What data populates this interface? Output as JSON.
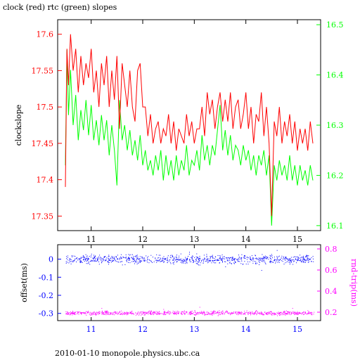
{
  "title": "clock (red) rtc (green) slopes",
  "footer": "2010-01-10 monopole.physics.ubc.ca",
  "colors": {
    "red": "#ff0000",
    "green": "#00ff00",
    "blue": "#0000ff",
    "magenta": "#ff00ff",
    "black": "#000000"
  },
  "chart_data": [
    {
      "type": "line",
      "xlim": [
        10.35,
        15.45
      ],
      "x_ticks": [
        "11",
        "12",
        "13",
        "14",
        "15"
      ],
      "ylabel_left": "clockslope",
      "ylim_left": [
        17.33,
        17.62
      ],
      "y_ticks_left": [
        "17.6",
        "17.55",
        "17.5",
        "17.45",
        "17.4",
        "17.35"
      ],
      "ylim_right": [
        16.09,
        16.51
      ],
      "y_ticks_right": [
        "16.5",
        "16.4",
        "16.3",
        "16.2",
        "16.1"
      ],
      "series": [
        {
          "axis": "left",
          "color": "red",
          "x": [
            10.5,
            10.53,
            10.56,
            10.6,
            10.65,
            10.7,
            10.75,
            10.8,
            10.85,
            10.9,
            10.95,
            11.0,
            11.05,
            11.1,
            11.15,
            11.2,
            11.25,
            11.3,
            11.35,
            11.4,
            11.45,
            11.5,
            11.55,
            11.6,
            11.65,
            11.7,
            11.75,
            11.8,
            11.85,
            11.9,
            11.95,
            12.0,
            12.05,
            12.1,
            12.15,
            12.2,
            12.25,
            12.3,
            12.35,
            12.4,
            12.45,
            12.5,
            12.55,
            12.6,
            12.65,
            12.7,
            12.75,
            12.8,
            12.85,
            12.9,
            12.95,
            13.0,
            13.05,
            13.1,
            13.15,
            13.2,
            13.25,
            13.3,
            13.35,
            13.4,
            13.45,
            13.5,
            13.55,
            13.6,
            13.65,
            13.7,
            13.75,
            13.8,
            13.85,
            13.9,
            13.95,
            14.0,
            14.05,
            14.1,
            14.15,
            14.2,
            14.25,
            14.3,
            14.35,
            14.4,
            14.45,
            14.5,
            14.55,
            14.6,
            14.65,
            14.7,
            14.75,
            14.8,
            14.85,
            14.9,
            14.95,
            15.0,
            15.05,
            15.1,
            15.15,
            15.2,
            15.25,
            15.3
          ],
          "y": [
            17.39,
            17.58,
            17.53,
            17.6,
            17.55,
            17.58,
            17.52,
            17.57,
            17.53,
            17.56,
            17.54,
            17.58,
            17.52,
            17.55,
            17.5,
            17.56,
            17.53,
            17.57,
            17.5,
            17.55,
            17.51,
            17.57,
            17.47,
            17.56,
            17.53,
            17.5,
            17.55,
            17.5,
            17.48,
            17.55,
            17.56,
            17.5,
            17.5,
            17.46,
            17.49,
            17.45,
            17.47,
            17.48,
            17.45,
            17.47,
            17.46,
            17.49,
            17.45,
            17.48,
            17.44,
            17.47,
            17.46,
            17.45,
            17.49,
            17.46,
            17.48,
            17.45,
            17.47,
            17.47,
            17.5,
            17.46,
            17.52,
            17.49,
            17.51,
            17.47,
            17.5,
            17.52,
            17.48,
            17.51,
            17.48,
            17.52,
            17.47,
            17.5,
            17.51,
            17.47,
            17.49,
            17.52,
            17.47,
            17.5,
            17.45,
            17.49,
            17.48,
            17.52,
            17.46,
            17.5,
            17.45,
            17.35,
            17.48,
            17.46,
            17.5,
            17.45,
            17.48,
            17.46,
            17.49,
            17.45,
            17.48,
            17.44,
            17.47,
            17.45,
            17.47,
            17.44,
            17.48,
            17.45
          ]
        },
        {
          "axis": "right",
          "color": "green",
          "x": [
            10.5,
            10.53,
            10.56,
            10.6,
            10.65,
            10.7,
            10.75,
            10.8,
            10.85,
            10.9,
            10.95,
            11.0,
            11.05,
            11.1,
            11.15,
            11.2,
            11.25,
            11.3,
            11.35,
            11.4,
            11.45,
            11.5,
            11.55,
            11.6,
            11.65,
            11.7,
            11.75,
            11.8,
            11.85,
            11.9,
            11.95,
            12.0,
            12.05,
            12.1,
            12.15,
            12.2,
            12.25,
            12.3,
            12.35,
            12.4,
            12.45,
            12.5,
            12.55,
            12.6,
            12.65,
            12.7,
            12.75,
            12.8,
            12.85,
            12.9,
            12.95,
            13.0,
            13.05,
            13.1,
            13.15,
            13.2,
            13.25,
            13.3,
            13.35,
            13.4,
            13.45,
            13.5,
            13.55,
            13.6,
            13.65,
            13.7,
            13.75,
            13.8,
            13.85,
            13.9,
            13.95,
            14.0,
            14.05,
            14.1,
            14.15,
            14.2,
            14.25,
            14.3,
            14.35,
            14.4,
            14.45,
            14.5,
            14.55,
            14.6,
            14.65,
            14.7,
            14.75,
            14.8,
            14.85,
            14.9,
            14.95,
            15.0,
            15.05,
            15.1,
            15.15,
            15.2,
            15.25,
            15.3
          ],
          "y": [
            16.22,
            16.45,
            16.32,
            16.41,
            16.3,
            16.36,
            16.27,
            16.33,
            16.29,
            16.35,
            16.28,
            16.34,
            16.27,
            16.31,
            16.26,
            16.32,
            16.27,
            16.31,
            16.24,
            16.3,
            16.25,
            16.18,
            16.35,
            16.27,
            16.3,
            16.25,
            16.29,
            16.24,
            16.27,
            16.23,
            16.28,
            16.22,
            16.25,
            16.21,
            16.23,
            16.2,
            16.24,
            16.21,
            16.25,
            16.19,
            16.24,
            16.2,
            16.23,
            16.19,
            16.24,
            16.2,
            16.23,
            16.21,
            16.26,
            16.2,
            16.23,
            16.22,
            16.25,
            16.21,
            16.28,
            16.23,
            16.26,
            16.22,
            16.26,
            16.24,
            16.29,
            16.34,
            16.25,
            16.29,
            16.24,
            16.28,
            16.23,
            16.26,
            16.25,
            16.22,
            16.26,
            16.23,
            16.25,
            16.21,
            16.24,
            16.2,
            16.24,
            16.22,
            16.25,
            16.2,
            16.24,
            16.1,
            16.22,
            16.19,
            16.23,
            16.2,
            16.22,
            16.19,
            16.24,
            16.19,
            16.22,
            16.18,
            16.22,
            16.19,
            16.21,
            16.18,
            16.22,
            16.19
          ]
        }
      ]
    },
    {
      "type": "scatter",
      "xlim": [
        10.35,
        15.45
      ],
      "x_ticks": [
        "11",
        "12",
        "13",
        "14",
        "15"
      ],
      "ylabel_left": "offset(ms)",
      "ylim_left": [
        -0.34,
        0.08
      ],
      "y_ticks_left": [
        "0",
        "-0.1",
        "-0.2",
        "-0.3"
      ],
      "ylabel_right": "rnd-trip(ms)",
      "ylim_right": [
        0.12,
        0.84
      ],
      "y_ticks_right": [
        "0.8",
        "0.6",
        "0.4",
        "0.2"
      ],
      "series": [
        {
          "axis": "left",
          "color": "blue",
          "x_range": [
            10.5,
            15.32
          ],
          "center": 0.0,
          "spread": 0.015,
          "outliers_x": [
            11.0,
            11.6,
            12.9,
            13.6,
            14.3,
            14.6
          ],
          "outliers_y": [
            0.03,
            -0.03,
            0.04,
            -0.04,
            -0.06,
            0.05
          ]
        },
        {
          "axis": "right",
          "color": "magenta",
          "x_range": [
            10.5,
            15.32
          ],
          "center": 0.195,
          "spread": 0.012,
          "outliers_x": [
            11.2,
            12.4,
            13.1,
            14.2,
            14.9
          ],
          "outliers_y": [
            0.24,
            0.23,
            0.25,
            0.22,
            0.24
          ]
        }
      ]
    }
  ]
}
